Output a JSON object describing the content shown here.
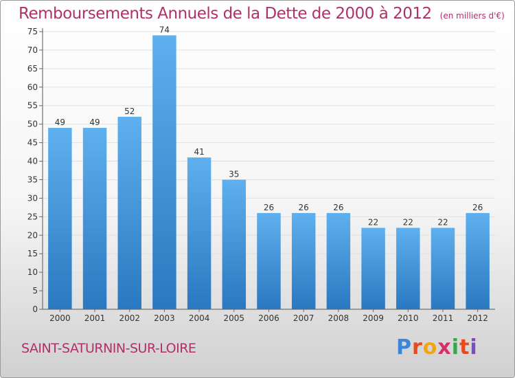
{
  "chart_data": {
    "type": "bar",
    "title": "Remboursements Annuels de la Dette de 2000 à 2012",
    "subtitle": "(en milliers d'€)",
    "categories": [
      "2000",
      "2001",
      "2002",
      "2003",
      "2004",
      "2005",
      "2006",
      "2007",
      "2008",
      "2009",
      "2010",
      "2011",
      "2012"
    ],
    "values": [
      49,
      49,
      52,
      74,
      41,
      35,
      26,
      26,
      26,
      22,
      22,
      22,
      26
    ],
    "ylim": [
      0,
      75
    ],
    "yticks": [
      0,
      5,
      10,
      15,
      20,
      25,
      30,
      35,
      40,
      45,
      50,
      55,
      60,
      65,
      70,
      75
    ],
    "grid": true,
    "bar_color": "#3f8fd8",
    "title_color": "#b0306a"
  },
  "footer": {
    "city": "SAINT-SATURNIN-SUR-LOIRE",
    "brand": "Proxiti"
  }
}
